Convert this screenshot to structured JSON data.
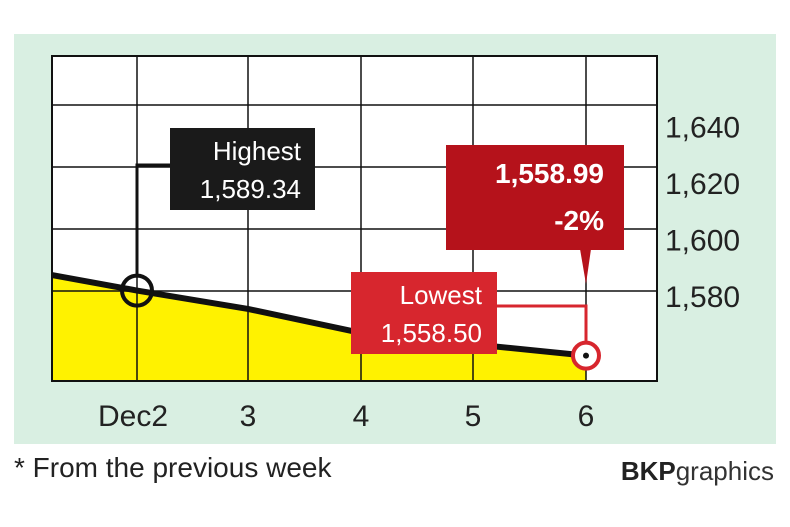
{
  "chart_data": {
    "type": "area",
    "x": [
      "Dec2",
      "3",
      "4",
      "5",
      "6"
    ],
    "series": [
      {
        "values": [
          1582,
          1575.5,
          1567,
          1563,
          1558.99
        ]
      }
    ],
    "start_value": 1587.5,
    "ylim": [
      1550,
      1665
    ],
    "yticks": [
      1580,
      1600,
      1620,
      1640
    ],
    "ytick_labels": [
      "1,580",
      "1,600",
      "1,620",
      "1,640"
    ],
    "grid": true,
    "annotations": {
      "highest": {
        "label": "Highest",
        "value": "1,589.34",
        "x": "Dec2",
        "y": 1582
      },
      "lowest": {
        "label": "Lowest",
        "value": "1,558.50",
        "x": "6",
        "y": 1558.99
      },
      "latest": {
        "value": "1,558.99",
        "change": "-2%",
        "x": "6"
      }
    }
  },
  "footnote": "* From the previous week",
  "credit": {
    "bold": "BKP",
    "light": "graphics"
  },
  "colors": {
    "background": "#d9efe2",
    "fill": "#fff200",
    "line": "#111111",
    "grid": "#111111",
    "highlight": "#d7262e",
    "latest_box": "#b5121b",
    "dark_box": "#1a1a1a"
  }
}
